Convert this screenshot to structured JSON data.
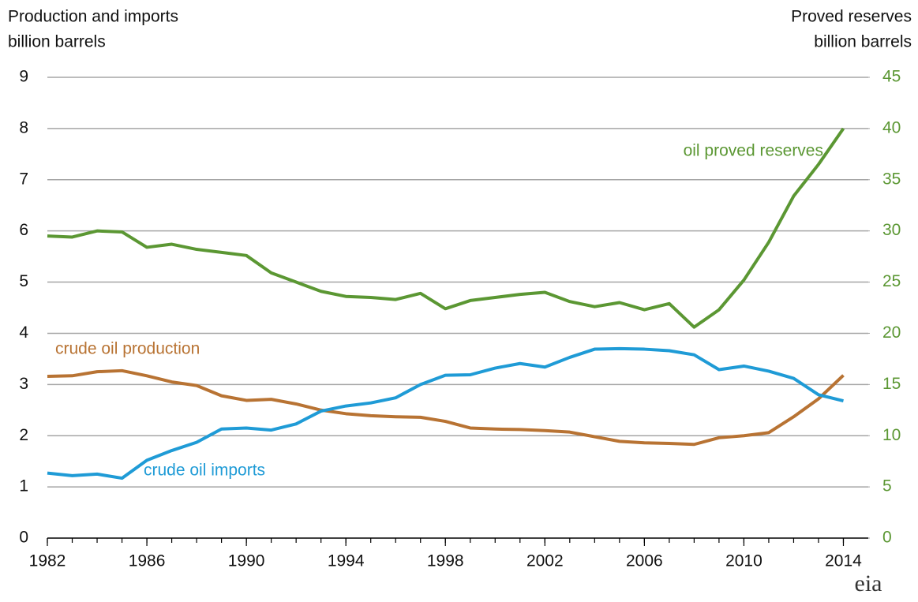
{
  "chart_data": {
    "type": "line",
    "y_label": [
      "Production and imports",
      "billion barrels"
    ],
    "y2_label": [
      "Proved reserves",
      "billion barrels"
    ],
    "logo": "eia",
    "x": [
      1982,
      1983,
      1984,
      1985,
      1986,
      1987,
      1988,
      1989,
      1990,
      1991,
      1992,
      1993,
      1994,
      1995,
      1996,
      1997,
      1998,
      1999,
      2000,
      2001,
      2002,
      2003,
      2004,
      2005,
      2006,
      2007,
      2008,
      2009,
      2010,
      2011,
      2012,
      2013,
      2014
    ],
    "series": [
      {
        "name": "oil proved reserves",
        "color": "#5b9733",
        "axis": "y2",
        "values": [
          29.5,
          29.4,
          30.0,
          29.9,
          28.4,
          28.7,
          28.2,
          27.9,
          27.6,
          25.9,
          25.0,
          24.1,
          23.6,
          23.5,
          23.3,
          23.9,
          22.4,
          23.2,
          23.5,
          23.8,
          24.0,
          23.1,
          22.6,
          23.0,
          22.3,
          22.9,
          20.6,
          22.3,
          25.2,
          28.9,
          33.4,
          36.5,
          40.0
        ]
      },
      {
        "name": "crude oil production",
        "color": "#b87333",
        "values": [
          3.16,
          3.17,
          3.25,
          3.27,
          3.17,
          3.05,
          2.98,
          2.78,
          2.69,
          2.71,
          2.62,
          2.5,
          2.43,
          2.39,
          2.37,
          2.36,
          2.28,
          2.15,
          2.13,
          2.12,
          2.1,
          2.07,
          1.98,
          1.89,
          1.86,
          1.85,
          1.83,
          1.96,
          2.0,
          2.06,
          2.37,
          2.72,
          3.18
        ]
      },
      {
        "name": "crude oil imports",
        "color": "#1f9bd6",
        "values": [
          1.27,
          1.22,
          1.25,
          1.17,
          1.52,
          1.71,
          1.87,
          2.13,
          2.15,
          2.11,
          2.23,
          2.48,
          2.58,
          2.64,
          2.74,
          3.0,
          3.18,
          3.19,
          3.32,
          3.41,
          3.34,
          3.53,
          3.69,
          3.7,
          3.69,
          3.66,
          3.58,
          3.29,
          3.36,
          3.26,
          3.12,
          2.8,
          2.68
        ]
      }
    ],
    "xlim": [
      1982,
      2015
    ],
    "xticks": [
      1982,
      1986,
      1990,
      1994,
      1998,
      2002,
      2006,
      2010,
      2014
    ],
    "ylim": [
      0,
      9
    ],
    "yticks": [
      0,
      1,
      2,
      3,
      4,
      5,
      6,
      7,
      8,
      9
    ],
    "y2lim": [
      0,
      45
    ],
    "y2ticks": [
      0,
      5,
      10,
      15,
      20,
      25,
      30,
      35,
      40,
      45
    ],
    "y2_color": "#5b9733",
    "grid": true
  }
}
